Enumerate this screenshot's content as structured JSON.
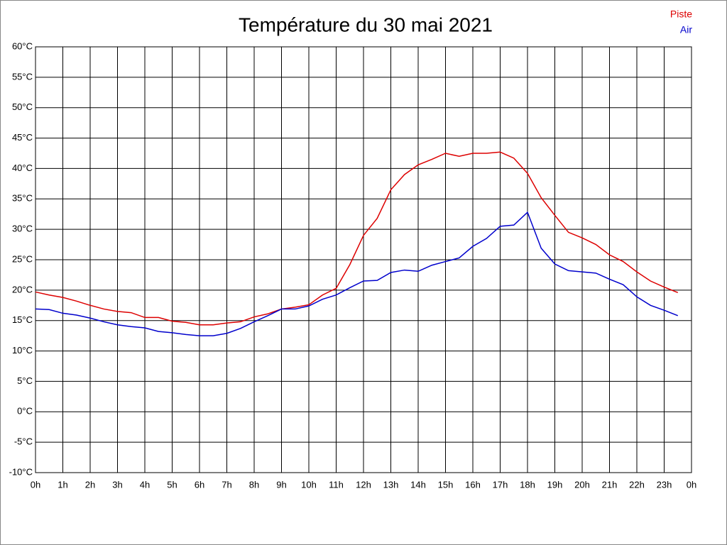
{
  "chart_data": {
    "type": "line",
    "title": "Température du 30 mai 2021",
    "x": [
      0,
      0.5,
      1,
      1.5,
      2,
      2.5,
      3,
      3.5,
      4,
      4.5,
      5,
      5.5,
      6,
      6.5,
      7,
      7.5,
      8,
      8.5,
      9,
      9.5,
      10,
      10.5,
      11,
      11.5,
      12,
      12.5,
      13,
      13.5,
      14,
      14.5,
      15,
      15.5,
      16,
      16.5,
      17,
      17.5,
      18,
      18.5,
      19,
      19.5,
      20,
      20.5,
      21,
      21.5,
      22,
      22.5,
      23,
      23.5
    ],
    "series": [
      {
        "name": "Piste",
        "color": "#dd0000",
        "values": [
          19.7,
          19.2,
          18.8,
          18.2,
          17.5,
          16.9,
          16.5,
          16.3,
          15.5,
          15.5,
          14.9,
          14.7,
          14.3,
          14.3,
          14.6,
          14.8,
          15.6,
          16.1,
          16.9,
          17.2,
          17.6,
          19.2,
          20.3,
          24.2,
          29.0,
          31.8,
          36.5,
          39.0,
          40.6,
          41.5,
          42.5,
          42.0,
          42.5,
          42.5,
          42.7,
          41.7,
          39.2,
          35.2,
          32.3,
          29.5,
          28.6,
          27.5,
          25.8,
          24.7,
          23.0,
          21.5,
          20.5,
          19.6
        ]
      },
      {
        "name": "Air",
        "color": "#0000cc",
        "values": [
          16.9,
          16.8,
          16.2,
          15.9,
          15.4,
          14.8,
          14.3,
          14.0,
          13.8,
          13.2,
          13.0,
          12.7,
          12.5,
          12.5,
          12.9,
          13.7,
          14.8,
          15.8,
          16.9,
          16.9,
          17.4,
          18.5,
          19.2,
          20.4,
          21.5,
          21.6,
          22.9,
          23.3,
          23.1,
          24.1,
          24.7,
          25.3,
          27.2,
          28.5,
          30.5,
          30.7,
          32.8,
          26.9,
          24.3,
          23.2,
          23.0,
          22.8,
          21.8,
          20.9,
          18.9,
          17.5,
          16.7,
          15.8
        ]
      }
    ],
    "xlim": [
      0,
      24
    ],
    "xticks": [
      {
        "value": 0,
        "label": "0h"
      },
      {
        "value": 1,
        "label": "1h"
      },
      {
        "value": 2,
        "label": "2h"
      },
      {
        "value": 3,
        "label": "3h"
      },
      {
        "value": 4,
        "label": "4h"
      },
      {
        "value": 5,
        "label": "5h"
      },
      {
        "value": 6,
        "label": "6h"
      },
      {
        "value": 7,
        "label": "7h"
      },
      {
        "value": 8,
        "label": "8h"
      },
      {
        "value": 9,
        "label": "9h"
      },
      {
        "value": 10,
        "label": "10h"
      },
      {
        "value": 11,
        "label": "11h"
      },
      {
        "value": 12,
        "label": "12h"
      },
      {
        "value": 13,
        "label": "13h"
      },
      {
        "value": 14,
        "label": "14h"
      },
      {
        "value": 15,
        "label": "15h"
      },
      {
        "value": 16,
        "label": "16h"
      },
      {
        "value": 17,
        "label": "17h"
      },
      {
        "value": 18,
        "label": "18h"
      },
      {
        "value": 19,
        "label": "19h"
      },
      {
        "value": 20,
        "label": "20h"
      },
      {
        "value": 21,
        "label": "21h"
      },
      {
        "value": 22,
        "label": "22h"
      },
      {
        "value": 23,
        "label": "23h"
      },
      {
        "value": 24,
        "label": "0h"
      }
    ],
    "ylim": [
      -10,
      60
    ],
    "yticks": [
      {
        "value": -10,
        "label": "-10°C"
      },
      {
        "value": -5,
        "label": "-5°C"
      },
      {
        "value": 0,
        "label": "0°C"
      },
      {
        "value": 5,
        "label": "5°C"
      },
      {
        "value": 10,
        "label": "10°C"
      },
      {
        "value": 15,
        "label": "15°C"
      },
      {
        "value": 20,
        "label": "20°C"
      },
      {
        "value": 25,
        "label": "25°C"
      },
      {
        "value": 30,
        "label": "30°C"
      },
      {
        "value": 35,
        "label": "35°C"
      },
      {
        "value": 40,
        "label": "40°C"
      },
      {
        "value": 45,
        "label": "45°C"
      },
      {
        "value": 50,
        "label": "50°C"
      },
      {
        "value": 55,
        "label": "55°C"
      },
      {
        "value": 60,
        "label": "60°C"
      }
    ],
    "grid": true,
    "legend": "top-right"
  }
}
